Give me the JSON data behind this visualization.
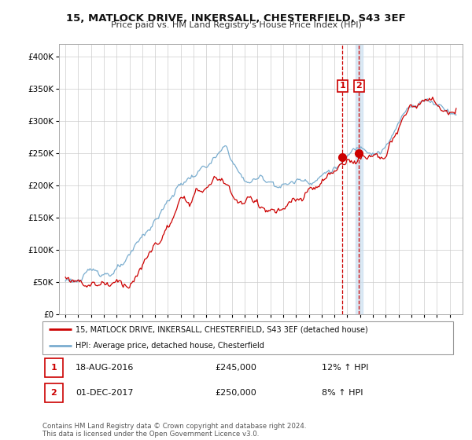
{
  "title": "15, MATLOCK DRIVE, INKERSALL, CHESTERFIELD, S43 3EF",
  "subtitle": "Price paid vs. HM Land Registry's House Price Index (HPI)",
  "legend_line1": "15, MATLOCK DRIVE, INKERSALL, CHESTERFIELD, S43 3EF (detached house)",
  "legend_line2": "HPI: Average price, detached house, Chesterfield",
  "transaction1_date": "18-AUG-2016",
  "transaction1_price": "£245,000",
  "transaction1_hpi": "12% ↑ HPI",
  "transaction2_date": "01-DEC-2017",
  "transaction2_price": "£250,000",
  "transaction2_hpi": "8% ↑ HPI",
  "footnote": "Contains HM Land Registry data © Crown copyright and database right 2024.\nThis data is licensed under the Open Government Licence v3.0.",
  "price_line_color": "#cc0000",
  "hpi_line_color": "#7aadcf",
  "vline_color": "#cc0000",
  "shade_color": "#cce0f0",
  "transaction1_x": 2016.63,
  "transaction2_x": 2017.92,
  "transaction1_y": 245000,
  "transaction2_y": 250000,
  "ylim": [
    0,
    420000
  ],
  "yticks": [
    0,
    50000,
    100000,
    150000,
    200000,
    250000,
    300000,
    350000,
    400000
  ],
  "xlim_start": 1994.5,
  "xlim_end": 2026.0,
  "background_color": "#ffffff",
  "grid_color": "#cccccc"
}
